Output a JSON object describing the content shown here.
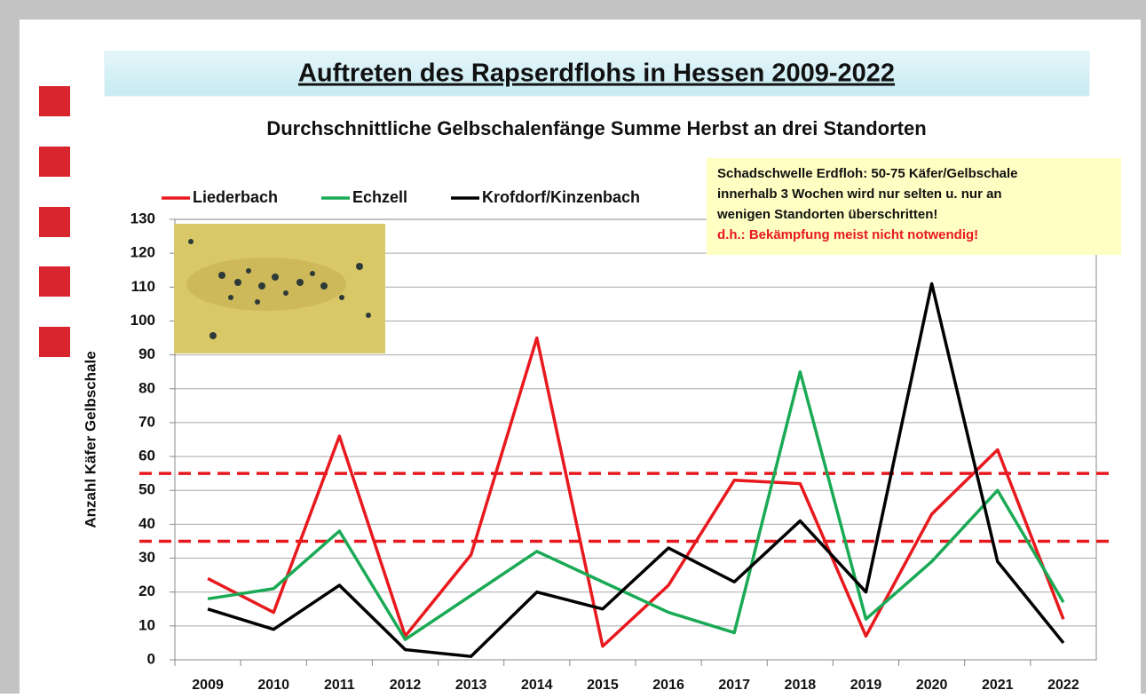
{
  "chart_data": {
    "type": "line",
    "title": "Auftreten des Rapserdflohs in Hessen 2009-2022",
    "subtitle": "Durchschnittliche Gelbschalenfänge Summe Herbst an drei Standorten",
    "y_label": "Anzahl Käfer Gelbschale",
    "annotation": [
      "Schadschwelle Erdfloh: 50-75 Käfer/Gelbschale",
      "innerhalb 3 Wochen wird nur selten u. nur an",
      "wenigen Standorten überschritten!"
    ],
    "annotation_warning": "d.h.: Bekämpfung meist nicht notwendig!",
    "categories": [
      "2009",
      "2010",
      "2011",
      "2012",
      "2013",
      "2014",
      "2015",
      "2016",
      "2017",
      "2018",
      "2019",
      "2020",
      "2021",
      "2022"
    ],
    "series": [
      {
        "name": "Liederbach",
        "color": "#e8191e",
        "values": [
          24,
          14,
          66,
          7,
          31,
          95,
          4,
          22,
          53,
          52,
          7,
          43,
          62,
          12
        ]
      },
      {
        "name": "Echzell",
        "color": "#1aaa55",
        "values": [
          18,
          21,
          38,
          6,
          19,
          32,
          23,
          14,
          8,
          85,
          12,
          29,
          50,
          17
        ]
      },
      {
        "name": "Krofdorf/Kinzenbach",
        "color": "#000000",
        "values": [
          15,
          9,
          22,
          3,
          1,
          20,
          15,
          33,
          23,
          41,
          20,
          111,
          29,
          5
        ]
      }
    ],
    "thresholds": [
      35,
      55
    ],
    "threshold_color": "#e8191e",
    "ylim": [
      0,
      130
    ],
    "yticks": [
      0,
      10,
      20,
      30,
      40,
      50,
      60,
      70,
      80,
      90,
      100,
      110,
      120,
      130
    ],
    "grid": true
  }
}
